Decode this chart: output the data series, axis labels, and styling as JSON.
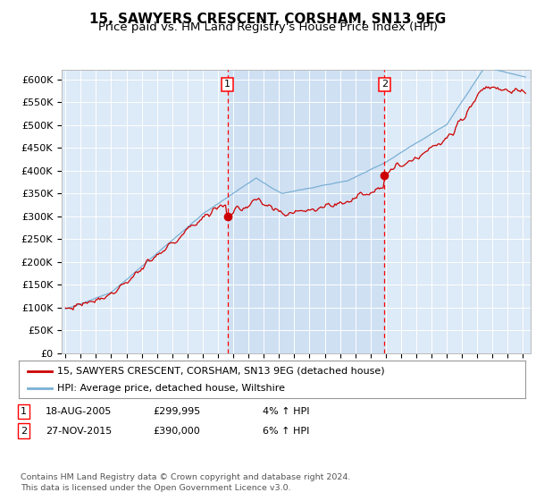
{
  "title": "15, SAWYERS CRESCENT, CORSHAM, SN13 9EG",
  "subtitle": "Price paid vs. HM Land Registry's House Price Index (HPI)",
  "ylim": [
    0,
    620000
  ],
  "yticks": [
    0,
    50000,
    100000,
    150000,
    200000,
    250000,
    300000,
    350000,
    400000,
    450000,
    500000,
    550000,
    600000
  ],
  "ytick_labels": [
    "£0",
    "£50K",
    "£100K",
    "£150K",
    "£200K",
    "£250K",
    "£300K",
    "£350K",
    "£400K",
    "£450K",
    "£500K",
    "£550K",
    "£600K"
  ],
  "background_color": "#ddeaf7",
  "highlight_color": "#cfe0f3",
  "line_color_red": "#cc0000",
  "line_color_blue": "#7ab0d4",
  "transaction1_date": 2005.63,
  "transaction1_price": 299995,
  "transaction2_date": 2015.92,
  "transaction2_price": 390000,
  "legend_line1": "15, SAWYERS CRESCENT, CORSHAM, SN13 9EG (detached house)",
  "legend_line2": "HPI: Average price, detached house, Wiltshire",
  "footer": "Contains HM Land Registry data © Crown copyright and database right 2024.\nThis data is licensed under the Open Government Licence v3.0.",
  "title_fontsize": 11,
  "subtitle_fontsize": 9.5
}
